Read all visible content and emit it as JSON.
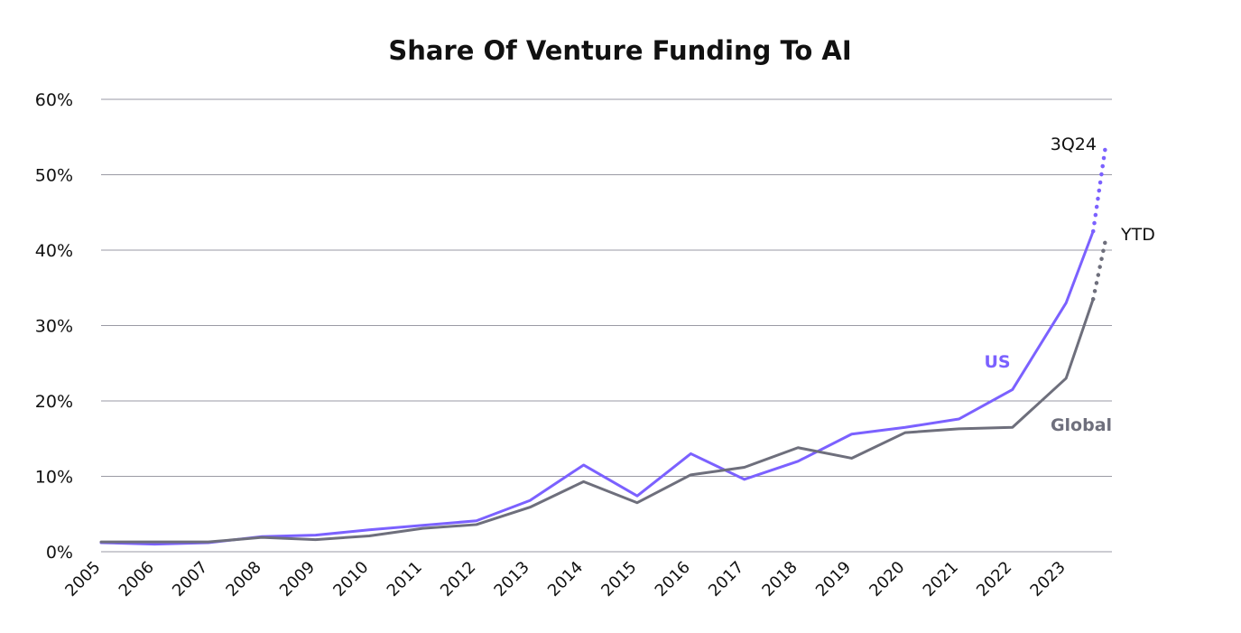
{
  "chart_data": {
    "type": "line",
    "title": "Share Of Venture Funding To AI",
    "xlabel": "",
    "ylabel": "",
    "ylim": [
      0,
      60
    ],
    "y_ticks": [
      "0%",
      "10%",
      "20%",
      "30%",
      "40%",
      "50%",
      "60%"
    ],
    "y_tick_values": [
      0,
      10,
      20,
      30,
      40,
      50,
      60
    ],
    "categories": [
      "2005",
      "2006",
      "2007",
      "2008",
      "2009",
      "2010",
      "2011",
      "2012",
      "2013",
      "2014",
      "2015",
      "2016",
      "2017",
      "2018",
      "2019",
      "2020",
      "2021",
      "2022",
      "2023"
    ],
    "series": [
      {
        "name": "US",
        "color": "#7b61ff",
        "values": [
          1.2,
          1.0,
          1.2,
          2.0,
          2.2,
          2.9,
          3.5,
          4.1,
          6.8,
          11.5,
          7.4,
          13.0,
          9.6,
          12.0,
          15.6,
          16.5,
          17.6,
          21.5,
          33.0
        ],
        "ytd_start": 42.5,
        "ytd_end": 54.0
      },
      {
        "name": "Global",
        "color": "#6e6f7c",
        "values": [
          1.3,
          1.3,
          1.3,
          1.9,
          1.6,
          2.1,
          3.1,
          3.6,
          5.9,
          9.3,
          6.5,
          10.2,
          11.2,
          13.8,
          12.4,
          15.8,
          16.3,
          16.5,
          23.0
        ],
        "ytd_start": 33.5,
        "ytd_end": 41.5
      }
    ],
    "annotations": [
      {
        "text": "3Q24",
        "series": "US"
      },
      {
        "text": "YTD",
        "series": "Global"
      }
    ],
    "grid": true,
    "legend": "inline"
  }
}
